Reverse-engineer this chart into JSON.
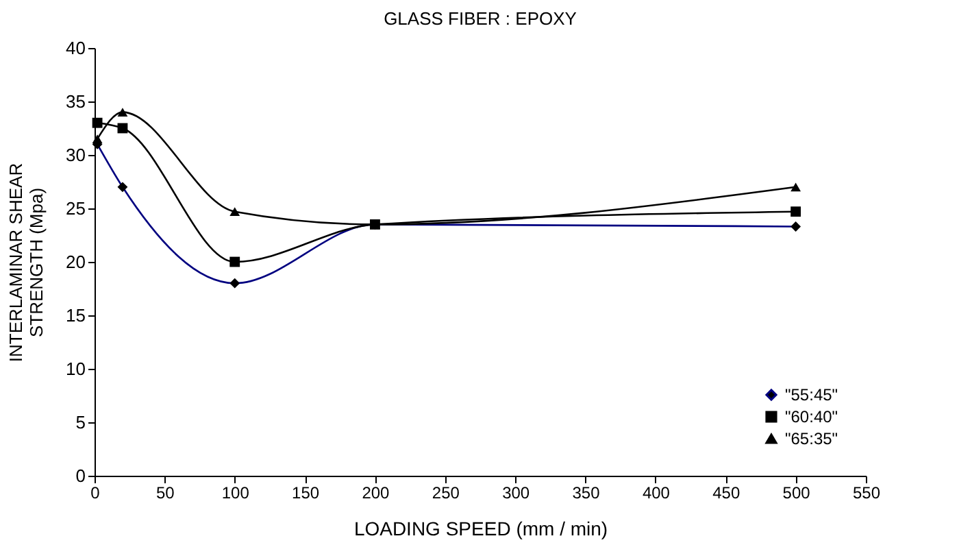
{
  "chart_data": {
    "type": "line",
    "title": "GLASS FIBER : EPOXY",
    "xlabel": "LOADING SPEED (mm / min)",
    "ylabel": "INTERLAMINAR SHEAR\nSTRENGTH (Mpa)",
    "x": [
      2,
      20,
      100,
      200,
      500
    ],
    "series": [
      {
        "name": "\"55:45\"",
        "color": "#000080",
        "marker": "diamond",
        "values": [
          31,
          27,
          18,
          23.5,
          23.3
        ]
      },
      {
        "name": "\"60:40\"",
        "color": "#000000",
        "marker": "square",
        "values": [
          33,
          32.5,
          20,
          23.5,
          24.7
        ]
      },
      {
        "name": "\"65:35\"",
        "color": "#000000",
        "marker": "triangle",
        "values": [
          31.5,
          34,
          24.7,
          23.5,
          27
        ]
      }
    ],
    "xlim": [
      0,
      550
    ],
    "xticks": [
      0,
      50,
      100,
      150,
      200,
      250,
      300,
      350,
      400,
      450,
      500,
      550
    ],
    "ylim": [
      0,
      40
    ],
    "yticks": [
      0,
      5,
      10,
      15,
      20,
      25,
      30,
      35,
      40
    ],
    "grid": false,
    "legend": "bottom right",
    "line_style": "solid"
  }
}
